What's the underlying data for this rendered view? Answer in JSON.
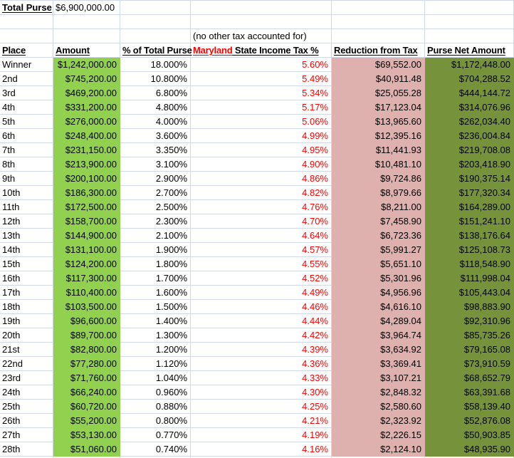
{
  "sheet": {
    "total_purse": {
      "label": "Total Purse",
      "value": "$6,900,000.00"
    },
    "note": "(no other tax accounted for)",
    "headers": {
      "place": "Place",
      "amount": "Amount",
      "pct": "% of Total Purse",
      "tax_red": "Maryland",
      "tax_rest": " State Income Tax %",
      "reduction": "Reduction from Tax",
      "net": "Purse Net Amount"
    },
    "colors": {
      "amount_fill": "#92D050",
      "reduction_fill": "#DEB0AE",
      "net_fill": "#76933C",
      "tax_text": "#FF0000",
      "gridline": "#D0D7E5"
    },
    "rows": [
      {
        "place": "Winner",
        "amount": "$1,242,000.00",
        "pct": "18.000%",
        "tax": "5.60%",
        "reduction": "$69,552.00",
        "net": "$1,172,448.00"
      },
      {
        "place": "2nd",
        "amount": "$745,200.00",
        "pct": "10.800%",
        "tax": "5.49%",
        "reduction": "$40,911.48",
        "net": "$704,288.52"
      },
      {
        "place": "3rd",
        "amount": "$469,200.00",
        "pct": "6.800%",
        "tax": "5.34%",
        "reduction": "$25,055.28",
        "net": "$444,144.72"
      },
      {
        "place": "4th",
        "amount": "$331,200.00",
        "pct": "4.800%",
        "tax": "5.17%",
        "reduction": "$17,123.04",
        "net": "$314,076.96"
      },
      {
        "place": "5th",
        "amount": "$276,000.00",
        "pct": "4.000%",
        "tax": "5.06%",
        "reduction": "$13,965.60",
        "net": "$262,034.40"
      },
      {
        "place": "6th",
        "amount": "$248,400.00",
        "pct": "3.600%",
        "tax": "4.99%",
        "reduction": "$12,395.16",
        "net": "$236,004.84"
      },
      {
        "place": "7th",
        "amount": "$231,150.00",
        "pct": "3.350%",
        "tax": "4.95%",
        "reduction": "$11,441.93",
        "net": "$219,708.08"
      },
      {
        "place": "8th",
        "amount": "$213,900.00",
        "pct": "3.100%",
        "tax": "4.90%",
        "reduction": "$10,481.10",
        "net": "$203,418.90"
      },
      {
        "place": "9th",
        "amount": "$200,100.00",
        "pct": "2.900%",
        "tax": "4.86%",
        "reduction": "$9,724.86",
        "net": "$190,375.14"
      },
      {
        "place": "10th",
        "amount": "$186,300.00",
        "pct": "2.700%",
        "tax": "4.82%",
        "reduction": "$8,979.66",
        "net": "$177,320.34"
      },
      {
        "place": "11th",
        "amount": "$172,500.00",
        "pct": "2.500%",
        "tax": "4.76%",
        "reduction": "$8,211.00",
        "net": "$164,289.00"
      },
      {
        "place": "12th",
        "amount": "$158,700.00",
        "pct": "2.300%",
        "tax": "4.70%",
        "reduction": "$7,458.90",
        "net": "$151,241.10"
      },
      {
        "place": "13th",
        "amount": "$144,900.00",
        "pct": "2.100%",
        "tax": "4.64%",
        "reduction": "$6,723.36",
        "net": "$138,176.64"
      },
      {
        "place": "14th",
        "amount": "$131,100.00",
        "pct": "1.900%",
        "tax": "4.57%",
        "reduction": "$5,991.27",
        "net": "$125,108.73"
      },
      {
        "place": "15th",
        "amount": "$124,200.00",
        "pct": "1.800%",
        "tax": "4.55%",
        "reduction": "$5,651.10",
        "net": "$118,548.90"
      },
      {
        "place": "16th",
        "amount": "$117,300.00",
        "pct": "1.700%",
        "tax": "4.52%",
        "reduction": "$5,301.96",
        "net": "$111,998.04"
      },
      {
        "place": "17th",
        "amount": "$110,400.00",
        "pct": "1.600%",
        "tax": "4.49%",
        "reduction": "$4,956.96",
        "net": "$105,443.04"
      },
      {
        "place": "18th",
        "amount": "$103,500.00",
        "pct": "1.500%",
        "tax": "4.46%",
        "reduction": "$4,616.10",
        "net": "$98,883.90"
      },
      {
        "place": "19th",
        "amount": "$96,600.00",
        "pct": "1.400%",
        "tax": "4.44%",
        "reduction": "$4,289.04",
        "net": "$92,310.96"
      },
      {
        "place": "20th",
        "amount": "$89,700.00",
        "pct": "1.300%",
        "tax": "4.42%",
        "reduction": "$3,964.74",
        "net": "$85,735.26"
      },
      {
        "place": "21st",
        "amount": "$82,800.00",
        "pct": "1.200%",
        "tax": "4.39%",
        "reduction": "$3,634.92",
        "net": "$79,165.08"
      },
      {
        "place": "22nd",
        "amount": "$77,280.00",
        "pct": "1.120%",
        "tax": "4.36%",
        "reduction": "$3,369.41",
        "net": "$73,910.59"
      },
      {
        "place": "23rd",
        "amount": "$71,760.00",
        "pct": "1.040%",
        "tax": "4.33%",
        "reduction": "$3,107.21",
        "net": "$68,652.79"
      },
      {
        "place": "24th",
        "amount": "$66,240.00",
        "pct": "0.960%",
        "tax": "4.30%",
        "reduction": "$2,848.32",
        "net": "$63,391.68"
      },
      {
        "place": "25th",
        "amount": "$60,720.00",
        "pct": "0.880%",
        "tax": "4.25%",
        "reduction": "$2,580.60",
        "net": "$58,139.40"
      },
      {
        "place": "26th",
        "amount": "$55,200.00",
        "pct": "0.800%",
        "tax": "4.21%",
        "reduction": "$2,323.92",
        "net": "$52,876.08"
      },
      {
        "place": "27th",
        "amount": "$53,130.00",
        "pct": "0.770%",
        "tax": "4.19%",
        "reduction": "$2,226.15",
        "net": "$50,903.85"
      },
      {
        "place": "28th",
        "amount": "$51,060.00",
        "pct": "0.740%",
        "tax": "4.16%",
        "reduction": "$2,124.10",
        "net": "$48,935.90"
      }
    ]
  }
}
